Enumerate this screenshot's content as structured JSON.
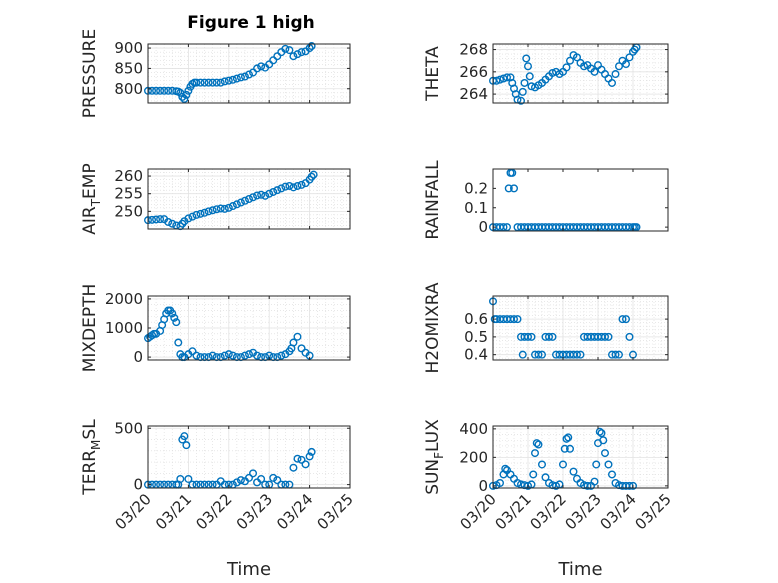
{
  "figure": {
    "title": "Figure 1 high",
    "marker_color": "#0072BD"
  },
  "chart_data": [
    {
      "type": "scatter",
      "ylabel": "PRESSURE",
      "xlabel": "",
      "ylim": [
        765,
        910
      ],
      "yticks": [
        800,
        850,
        900
      ],
      "xlim": [
        0,
        5
      ],
      "show_xticklabels": false,
      "grid": true,
      "marker": "circle",
      "x": [
        0.0,
        0.1,
        0.2,
        0.3,
        0.4,
        0.5,
        0.6,
        0.7,
        0.75,
        0.8,
        0.85,
        0.9,
        0.95,
        1.0,
        1.05,
        1.1,
        1.15,
        1.2,
        1.3,
        1.4,
        1.5,
        1.6,
        1.7,
        1.8,
        1.9,
        2.0,
        2.1,
        2.2,
        2.3,
        2.4,
        2.5,
        2.6,
        2.7,
        2.8,
        2.9,
        3.0,
        3.1,
        3.2,
        3.3,
        3.4,
        3.5,
        3.6,
        3.7,
        3.8,
        3.9,
        4.0,
        4.05
      ],
      "y": [
        795,
        795,
        795,
        795,
        795,
        795,
        795,
        794,
        793,
        790,
        780,
        775,
        785,
        795,
        805,
        812,
        815,
        815,
        815,
        815,
        815,
        815,
        815,
        815,
        818,
        820,
        822,
        825,
        828,
        830,
        835,
        840,
        850,
        855,
        852,
        860,
        870,
        880,
        890,
        898,
        895,
        880,
        885,
        890,
        892,
        900,
        905
      ]
    },
    {
      "type": "scatter",
      "ylabel": "THETA",
      "xlabel": "",
      "ylim": [
        263.2,
        268.5
      ],
      "yticks": [
        264,
        266,
        268
      ],
      "xlim": [
        0,
        5
      ],
      "show_xticklabels": false,
      "grid": true,
      "marker": "circle",
      "x": [
        0.0,
        0.1,
        0.2,
        0.3,
        0.4,
        0.5,
        0.55,
        0.6,
        0.65,
        0.7,
        0.8,
        0.85,
        0.9,
        0.95,
        1.0,
        1.05,
        1.1,
        1.2,
        1.3,
        1.4,
        1.5,
        1.6,
        1.7,
        1.8,
        1.9,
        2.0,
        2.1,
        2.2,
        2.3,
        2.4,
        2.5,
        2.6,
        2.7,
        2.8,
        2.9,
        3.0,
        3.1,
        3.2,
        3.3,
        3.4,
        3.5,
        3.6,
        3.7,
        3.8,
        3.9,
        4.0,
        4.05,
        4.1
      ],
      "y": [
        265.2,
        265.2,
        265.3,
        265.4,
        265.5,
        265.5,
        265.0,
        264.5,
        264.0,
        263.5,
        263.4,
        264.2,
        265.0,
        267.2,
        266.5,
        265.6,
        264.7,
        264.6,
        264.8,
        265.0,
        265.3,
        265.6,
        265.9,
        266.0,
        265.8,
        266.0,
        266.4,
        267.0,
        267.5,
        267.3,
        266.8,
        266.5,
        266.6,
        266.3,
        266.0,
        266.6,
        266.2,
        265.8,
        265.4,
        265.0,
        265.8,
        266.5,
        267.0,
        266.7,
        267.3,
        267.8,
        268.0,
        268.2
      ]
    },
    {
      "type": "scatter",
      "ylabel": "AIR_TEMP",
      "xlabel": "",
      "ylim": [
        245,
        262
      ],
      "yticks": [
        250,
        255,
        260
      ],
      "xlim": [
        0,
        5
      ],
      "show_xticklabels": false,
      "grid": true,
      "marker": "circle",
      "x": [
        0.0,
        0.1,
        0.2,
        0.3,
        0.4,
        0.5,
        0.6,
        0.7,
        0.8,
        0.85,
        0.9,
        1.0,
        1.1,
        1.2,
        1.3,
        1.4,
        1.5,
        1.6,
        1.7,
        1.8,
        1.9,
        2.0,
        2.1,
        2.2,
        2.3,
        2.4,
        2.5,
        2.6,
        2.7,
        2.8,
        2.9,
        3.0,
        3.1,
        3.2,
        3.3,
        3.4,
        3.5,
        3.6,
        3.7,
        3.8,
        3.9,
        4.0,
        4.05,
        4.1
      ],
      "y": [
        247.5,
        247.6,
        247.7,
        247.8,
        247.8,
        247.0,
        246.5,
        246.0,
        245.8,
        246.5,
        247.2,
        248.0,
        248.5,
        249.0,
        249.3,
        249.6,
        250.0,
        250.3,
        250.6,
        250.8,
        250.7,
        251.0,
        251.5,
        252.0,
        252.5,
        253.0,
        253.5,
        254.0,
        254.5,
        254.7,
        254.4,
        255.0,
        255.5,
        256.0,
        256.5,
        257.0,
        257.2,
        256.8,
        257.2,
        257.5,
        258.0,
        259.0,
        259.8,
        260.4
      ]
    },
    {
      "type": "scatter",
      "ylabel": "RAINFALL",
      "xlabel": "",
      "ylim": [
        -0.02,
        0.3
      ],
      "yticks": [
        0,
        0.1,
        0.2
      ],
      "xlim": [
        0,
        5
      ],
      "show_xticklabels": false,
      "grid": false,
      "marker": "circle",
      "x": [
        0.0,
        0.1,
        0.2,
        0.3,
        0.4,
        0.45,
        0.5,
        0.55,
        0.6,
        0.7,
        0.8,
        0.9,
        1.0,
        1.1,
        1.2,
        1.3,
        1.4,
        1.5,
        1.6,
        1.7,
        1.8,
        1.9,
        2.0,
        2.1,
        2.2,
        2.3,
        2.4,
        2.5,
        2.6,
        2.7,
        2.8,
        2.9,
        3.0,
        3.1,
        3.2,
        3.3,
        3.4,
        3.5,
        3.6,
        3.7,
        3.8,
        3.9,
        4.0,
        4.05,
        4.1
      ],
      "y": [
        0,
        0,
        0,
        0,
        0,
        0.2,
        0.28,
        0.28,
        0.2,
        0,
        0,
        0,
        0,
        0,
        0,
        0,
        0,
        0,
        0,
        0,
        0,
        0,
        0,
        0,
        0,
        0,
        0,
        0,
        0,
        0,
        0,
        0,
        0,
        0,
        0,
        0,
        0,
        0,
        0,
        0,
        0,
        0,
        0,
        0,
        0
      ]
    },
    {
      "type": "scatter",
      "ylabel": "MIXDEPTH",
      "xlabel": "",
      "ylim": [
        -100,
        2100
      ],
      "yticks": [
        0,
        1000,
        2000
      ],
      "xlim": [
        0,
        5
      ],
      "show_xticklabels": false,
      "grid": true,
      "marker": "circle",
      "x": [
        0.0,
        0.05,
        0.1,
        0.15,
        0.2,
        0.3,
        0.35,
        0.4,
        0.45,
        0.5,
        0.55,
        0.6,
        0.65,
        0.7,
        0.75,
        0.8,
        0.85,
        0.9,
        1.0,
        1.1,
        1.2,
        1.3,
        1.4,
        1.5,
        1.6,
        1.7,
        1.8,
        1.9,
        2.0,
        2.1,
        2.2,
        2.3,
        2.4,
        2.5,
        2.6,
        2.7,
        2.8,
        2.9,
        3.0,
        3.1,
        3.2,
        3.3,
        3.4,
        3.5,
        3.55,
        3.6,
        3.7,
        3.8,
        3.9,
        4.0
      ],
      "y": [
        650,
        700,
        750,
        800,
        800,
        900,
        1100,
        1300,
        1500,
        1600,
        1600,
        1500,
        1350,
        1200,
        500,
        100,
        0,
        0,
        100,
        200,
        50,
        0,
        0,
        0,
        50,
        0,
        0,
        50,
        100,
        50,
        0,
        0,
        50,
        100,
        150,
        50,
        0,
        0,
        50,
        0,
        0,
        50,
        100,
        200,
        300,
        500,
        700,
        300,
        150,
        50
      ]
    },
    {
      "type": "scatter",
      "ylabel": "H2OMIXRA",
      "xlabel": "",
      "ylim": [
        0.37,
        0.73
      ],
      "yticks": [
        0.4,
        0.5,
        0.6
      ],
      "xlim": [
        0,
        5
      ],
      "show_xticklabels": false,
      "grid": true,
      "marker": "circle",
      "x": [
        0.0,
        0.05,
        0.1,
        0.2,
        0.3,
        0.4,
        0.5,
        0.6,
        0.7,
        0.8,
        0.85,
        0.9,
        1.0,
        1.1,
        1.2,
        1.3,
        1.4,
        1.5,
        1.6,
        1.7,
        1.8,
        1.9,
        2.0,
        2.1,
        2.2,
        2.3,
        2.4,
        2.5,
        2.6,
        2.7,
        2.8,
        2.9,
        3.0,
        3.1,
        3.2,
        3.3,
        3.4,
        3.5,
        3.6,
        3.7,
        3.8,
        3.9,
        4.0
      ],
      "y": [
        0.7,
        0.6,
        0.6,
        0.6,
        0.6,
        0.6,
        0.6,
        0.6,
        0.6,
        0.5,
        0.4,
        0.5,
        0.5,
        0.5,
        0.4,
        0.4,
        0.4,
        0.5,
        0.5,
        0.5,
        0.4,
        0.4,
        0.4,
        0.4,
        0.4,
        0.4,
        0.4,
        0.4,
        0.5,
        0.5,
        0.5,
        0.5,
        0.5,
        0.5,
        0.5,
        0.5,
        0.4,
        0.4,
        0.4,
        0.6,
        0.6,
        0.5,
        0.4
      ]
    },
    {
      "type": "scatter",
      "ylabel": "TERR_MSL",
      "xlabel": "Time",
      "ylim": [
        -30,
        520
      ],
      "yticks": [
        0,
        500
      ],
      "xlim": [
        0,
        5
      ],
      "xticks": [
        0,
        1,
        2,
        3,
        4,
        5
      ],
      "xticklabels": [
        "03/20",
        "03/21",
        "03/22",
        "03/23",
        "03/24",
        "03/25"
      ],
      "show_xticklabels": true,
      "grid": true,
      "marker": "circle",
      "x": [
        0.0,
        0.1,
        0.2,
        0.3,
        0.4,
        0.5,
        0.6,
        0.7,
        0.75,
        0.8,
        0.85,
        0.9,
        0.95,
        1.0,
        1.1,
        1.2,
        1.3,
        1.4,
        1.5,
        1.6,
        1.7,
        1.8,
        1.9,
        2.0,
        2.1,
        2.2,
        2.3,
        2.4,
        2.5,
        2.6,
        2.7,
        2.8,
        2.9,
        3.0,
        3.1,
        3.2,
        3.3,
        3.4,
        3.5,
        3.6,
        3.7,
        3.8,
        3.9,
        4.0,
        4.05
      ],
      "y": [
        0,
        0,
        0,
        0,
        0,
        0,
        0,
        0,
        0,
        50,
        400,
        430,
        350,
        50,
        0,
        0,
        0,
        0,
        0,
        0,
        0,
        30,
        0,
        0,
        0,
        20,
        40,
        30,
        60,
        100,
        20,
        50,
        0,
        0,
        60,
        40,
        0,
        0,
        0,
        150,
        230,
        220,
        180,
        250,
        290
      ]
    },
    {
      "type": "scatter",
      "ylabel": "SUN_FLUX",
      "xlabel": "Time",
      "ylim": [
        -15,
        420
      ],
      "yticks": [
        0,
        200,
        400
      ],
      "xlim": [
        0,
        5
      ],
      "xticks": [
        0,
        1,
        2,
        3,
        4,
        5
      ],
      "xticklabels": [
        "03/20",
        "03/21",
        "03/22",
        "03/23",
        "03/24",
        "03/25"
      ],
      "show_xticklabels": true,
      "grid": true,
      "marker": "circle",
      "x": [
        0.0,
        0.1,
        0.2,
        0.3,
        0.35,
        0.4,
        0.5,
        0.6,
        0.7,
        0.8,
        0.9,
        1.0,
        1.1,
        1.15,
        1.2,
        1.25,
        1.3,
        1.4,
        1.5,
        1.6,
        1.7,
        1.8,
        1.9,
        2.0,
        2.05,
        2.1,
        2.15,
        2.2,
        2.3,
        2.4,
        2.5,
        2.6,
        2.7,
        2.8,
        2.9,
        2.95,
        3.0,
        3.05,
        3.1,
        3.15,
        3.2,
        3.3,
        3.4,
        3.5,
        3.6,
        3.7,
        3.8,
        3.9,
        4.0
      ],
      "y": [
        0,
        5,
        20,
        80,
        120,
        110,
        80,
        50,
        20,
        10,
        5,
        0,
        10,
        80,
        230,
        300,
        290,
        150,
        60,
        20,
        5,
        0,
        10,
        150,
        260,
        330,
        340,
        260,
        100,
        50,
        20,
        5,
        0,
        0,
        30,
        150,
        300,
        380,
        370,
        320,
        230,
        150,
        80,
        20,
        5,
        0,
        0,
        0,
        0
      ]
    }
  ]
}
